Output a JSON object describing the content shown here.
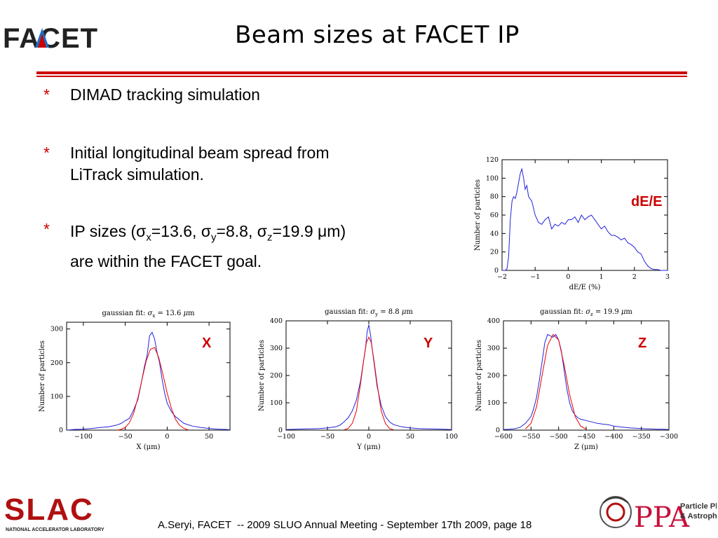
{
  "title": "Beam sizes at FACET IP",
  "logos": {
    "facet": "FACET",
    "slac": "SLAC",
    "slac_sub": "NATIONAL ACCELERATOR LABORATORY",
    "ppa": "PPA",
    "ppa_sub1": "Particle Physics",
    "ppa_sub2": "& Astrophysics"
  },
  "bullets": [
    {
      "marker": "*",
      "lines": [
        "DIMAD tracking simulation"
      ]
    },
    {
      "marker": "*",
      "lines": [
        "Initial longitudinal beam spread from",
        "LiTrack simulation."
      ]
    },
    {
      "marker": "*",
      "line1_pre": "IP sizes (",
      "sx": "σ",
      "sx_sub": "x",
      "sx_val": "=13.6, ",
      "sy": "σ",
      "sy_sub": "y",
      "sy_val": "=8.8, ",
      "sz": "σ",
      "sz_sub": "z",
      "sz_val": "=19.9 ",
      "mu": "μ",
      "line1_post": "m)",
      "line2": "are within the FACET goal."
    }
  ],
  "footer": "A.Seryi, FACET  -- 2009 SLUO Annual Meeting - September 17th 2009, page 18",
  "colors": {
    "accent_red": "#cc0000",
    "histogram": "#2222dd",
    "fit": "#ee0000"
  },
  "chart_data": [
    {
      "id": "dE",
      "type": "line",
      "title": "",
      "label": "dE/E",
      "xlabel": "dE/E (%)",
      "ylabel": "Number of particles",
      "xlim": [
        -2,
        3
      ],
      "ylim": [
        0,
        120
      ],
      "xticks": [
        "-2",
        "-1",
        "0",
        "1",
        "2",
        "3"
      ],
      "yticks": [
        "0",
        "20",
        "40",
        "60",
        "80",
        "100",
        "120"
      ],
      "series": [
        {
          "x": [
            -2.0,
            -1.95,
            -1.9,
            -1.85,
            -1.8,
            -1.75,
            -1.7,
            -1.65,
            -1.6,
            -1.55,
            -1.5,
            -1.45,
            -1.4,
            -1.35,
            -1.3,
            -1.25,
            -1.2,
            -1.1,
            -1.0,
            -0.9,
            -0.8,
            -0.7,
            -0.6,
            -0.5,
            -0.4,
            -0.3,
            -0.2,
            -0.1,
            0.0,
            0.1,
            0.2,
            0.3,
            0.4,
            0.5,
            0.6,
            0.7,
            0.8,
            0.9,
            1.0,
            1.1,
            1.2,
            1.3,
            1.4,
            1.5,
            1.6,
            1.7,
            1.8,
            1.9,
            2.0,
            2.1,
            2.2,
            2.3,
            2.4,
            2.5,
            2.6,
            2.7,
            2.8,
            2.9,
            3.0
          ],
          "y": [
            0,
            0,
            0,
            2,
            15,
            55,
            75,
            80,
            78,
            85,
            95,
            105,
            110,
            100,
            88,
            92,
            80,
            75,
            60,
            52,
            50,
            55,
            58,
            45,
            50,
            48,
            52,
            50,
            55,
            55,
            58,
            52,
            60,
            55,
            58,
            60,
            55,
            50,
            45,
            48,
            42,
            38,
            38,
            36,
            33,
            35,
            30,
            28,
            25,
            20,
            18,
            10,
            5,
            2,
            1,
            1,
            0,
            0,
            0
          ]
        }
      ]
    },
    {
      "id": "X",
      "type": "line",
      "title": "gaussian fit: σx = 13.6 μm",
      "title_pre": "gaussian fit: ",
      "title_sym": "σ",
      "title_sub": "x",
      "title_post": " = 13.6 ",
      "title_mu": "μ",
      "title_unit": "m",
      "label": "X",
      "xlabel": "X (μm)",
      "ylabel": "Number of particles",
      "xlim": [
        -120,
        75
      ],
      "ylim": [
        0,
        320
      ],
      "xticks": [
        "-100",
        "-50",
        "0",
        "50"
      ],
      "xtick_vals": [
        -100,
        -50,
        0,
        50
      ],
      "yticks": [
        "0",
        "100",
        "200",
        "300"
      ],
      "series": [
        {
          "name": "",
          "x": [
            -120,
            -110,
            -100,
            -90,
            -80,
            -70,
            -60,
            -55,
            -50,
            -45,
            -40,
            -35,
            -30,
            -27,
            -24,
            -21,
            -18,
            -15,
            -12,
            -9,
            -6,
            -3,
            0,
            5,
            10,
            15,
            20,
            30,
            40,
            50,
            60,
            70,
            75
          ],
          "y": [
            0,
            2,
            3,
            5,
            8,
            10,
            15,
            20,
            28,
            35,
            60,
            90,
            150,
            190,
            220,
            280,
            290,
            270,
            230,
            200,
            150,
            110,
            80,
            55,
            40,
            30,
            20,
            12,
            8,
            5,
            3,
            2,
            1
          ]
        },
        {
          "name": "",
          "x": [
            -60,
            -55,
            -50,
            -45,
            -40,
            -35,
            -30,
            -25,
            -20,
            -15,
            -10,
            -5,
            0,
            5,
            10,
            15,
            20,
            25
          ],
          "y": [
            0,
            2,
            8,
            22,
            50,
            95,
            150,
            205,
            240,
            245,
            215,
            165,
            110,
            65,
            32,
            14,
            5,
            1
          ]
        }
      ]
    },
    {
      "id": "Y",
      "type": "line",
      "title": "gaussian fit: σy = 8.8 μm",
      "title_pre": "gaussian fit: ",
      "title_sym": "σ",
      "title_sub": "y",
      "title_post": " = 8.8 ",
      "title_mu": "μ",
      "title_unit": "m",
      "label": "Y",
      "xlabel": "Y (μm)",
      "ylabel": "Number of particles",
      "xlim": [
        -100,
        100
      ],
      "ylim": [
        0,
        400
      ],
      "xticks": [
        "-100",
        "-50",
        "0",
        "50",
        "100"
      ],
      "xtick_vals": [
        -100,
        -50,
        0,
        50,
        100
      ],
      "yticks": [
        "0",
        "100",
        "200",
        "300",
        "400"
      ],
      "series": [
        {
          "name": "",
          "x": [
            -100,
            -90,
            -80,
            -70,
            -60,
            -50,
            -40,
            -35,
            -30,
            -25,
            -20,
            -15,
            -10,
            -7,
            -4,
            -2,
            0,
            2,
            4,
            7,
            10,
            15,
            20,
            25,
            30,
            40,
            50,
            60,
            70,
            80,
            90,
            100
          ],
          "y": [
            2,
            3,
            4,
            5,
            6,
            8,
            12,
            18,
            30,
            45,
            70,
            110,
            180,
            240,
            300,
            360,
            385,
            350,
            300,
            230,
            160,
            90,
            50,
            30,
            20,
            12,
            8,
            6,
            5,
            4,
            3,
            2
          ]
        },
        {
          "name": "",
          "x": [
            -30,
            -25,
            -20,
            -15,
            -10,
            -6,
            -3,
            0,
            3,
            6,
            10,
            15,
            20,
            25,
            30
          ],
          "y": [
            1,
            6,
            25,
            70,
            170,
            260,
            320,
            340,
            320,
            260,
            170,
            70,
            25,
            6,
            1
          ]
        }
      ]
    },
    {
      "id": "Z",
      "type": "line",
      "title": "gaussian fit: σz = 19.9 μm",
      "title_pre": "gaussian fit: ",
      "title_sym": "σ",
      "title_sub": "z",
      "title_post": " = 19.9 ",
      "title_mu": "μ",
      "title_unit": "m",
      "label": "Z",
      "xlabel": "Z (μm)",
      "ylabel": "Number of particles",
      "xlim": [
        -600,
        -300
      ],
      "ylim": [
        0,
        400
      ],
      "xticks": [
        "-600",
        "-550",
        "-500",
        "-450",
        "-400",
        "-350",
        "-300"
      ],
      "xtick_vals": [
        -600,
        -550,
        -500,
        -450,
        -400,
        -350,
        -300
      ],
      "yticks": [
        "0",
        "100",
        "200",
        "300",
        "400"
      ],
      "series": [
        {
          "name": "",
          "x": [
            -600,
            -590,
            -580,
            -570,
            -560,
            -550,
            -545,
            -540,
            -535,
            -530,
            -525,
            -520,
            -515,
            -510,
            -505,
            -500,
            -495,
            -490,
            -485,
            -480,
            -475,
            -470,
            -465,
            -460,
            -450,
            -440,
            -430,
            -420,
            -410,
            -400,
            -390,
            -380,
            -370,
            -360,
            -350,
            -340,
            -330,
            -320,
            -310,
            -300
          ],
          "y": [
            2,
            3,
            5,
            10,
            25,
            50,
            80,
            120,
            180,
            250,
            320,
            350,
            345,
            340,
            350,
            330,
            290,
            220,
            150,
            100,
            70,
            55,
            45,
            40,
            35,
            30,
            25,
            22,
            20,
            15,
            12,
            10,
            8,
            7,
            6,
            5,
            4,
            3,
            3,
            2
          ]
        },
        {
          "name": "",
          "x": [
            -560,
            -550,
            -540,
            -530,
            -520,
            -510,
            -500,
            -490,
            -480,
            -470,
            -460,
            -450
          ],
          "y": [
            5,
            25,
            85,
            200,
            310,
            350,
            330,
            240,
            130,
            50,
            15,
            3
          ]
        }
      ]
    }
  ]
}
